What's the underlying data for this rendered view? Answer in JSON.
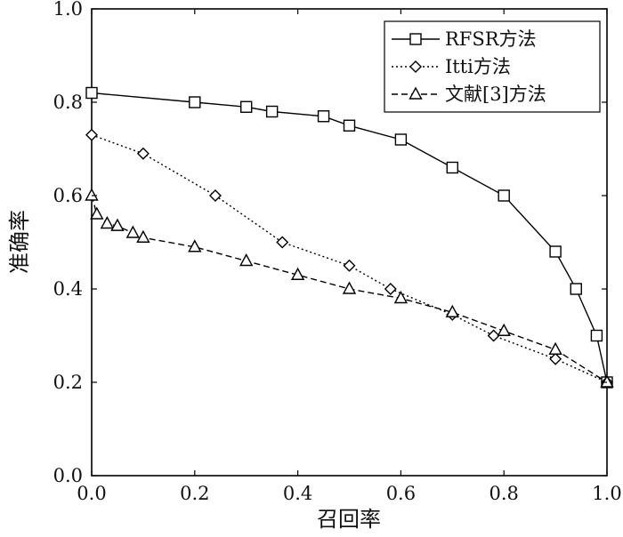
{
  "chart_data": {
    "type": "line",
    "xlabel": "召回率",
    "ylabel": "准确率",
    "xlim": [
      0,
      1
    ],
    "ylim": [
      0,
      1
    ],
    "xticks": [
      "0.0",
      "0.2",
      "0.4",
      "0.6",
      "0.8",
      "1.0"
    ],
    "yticks": [
      "0.0",
      "0.2",
      "0.4",
      "0.6",
      "0.8",
      "1.0"
    ],
    "grid": false,
    "legend_position": "top-right",
    "series": [
      {
        "name": "RFSR方法",
        "marker": "square",
        "line_style": "solid",
        "x": [
          0.0,
          0.2,
          0.3,
          0.35,
          0.45,
          0.5,
          0.6,
          0.7,
          0.8,
          0.9,
          0.94,
          0.98,
          1.0
        ],
        "y": [
          0.82,
          0.8,
          0.79,
          0.78,
          0.77,
          0.75,
          0.72,
          0.66,
          0.6,
          0.48,
          0.4,
          0.3,
          0.2
        ]
      },
      {
        "name": "Itti方法",
        "marker": "diamond",
        "line_style": "dotted",
        "x": [
          0.0,
          0.1,
          0.24,
          0.37,
          0.5,
          0.58,
          0.7,
          0.78,
          0.9,
          1.0
        ],
        "y": [
          0.73,
          0.69,
          0.6,
          0.5,
          0.45,
          0.4,
          0.345,
          0.3,
          0.25,
          0.2
        ]
      },
      {
        "name": "文献[3]方法",
        "marker": "triangle",
        "line_style": "dashed",
        "x": [
          0.0,
          0.01,
          0.03,
          0.05,
          0.08,
          0.1,
          0.2,
          0.3,
          0.4,
          0.5,
          0.6,
          0.7,
          0.8,
          0.9,
          1.0
        ],
        "y": [
          0.6,
          0.56,
          0.54,
          0.535,
          0.52,
          0.51,
          0.49,
          0.46,
          0.43,
          0.4,
          0.38,
          0.35,
          0.31,
          0.27,
          0.2
        ]
      }
    ]
  }
}
